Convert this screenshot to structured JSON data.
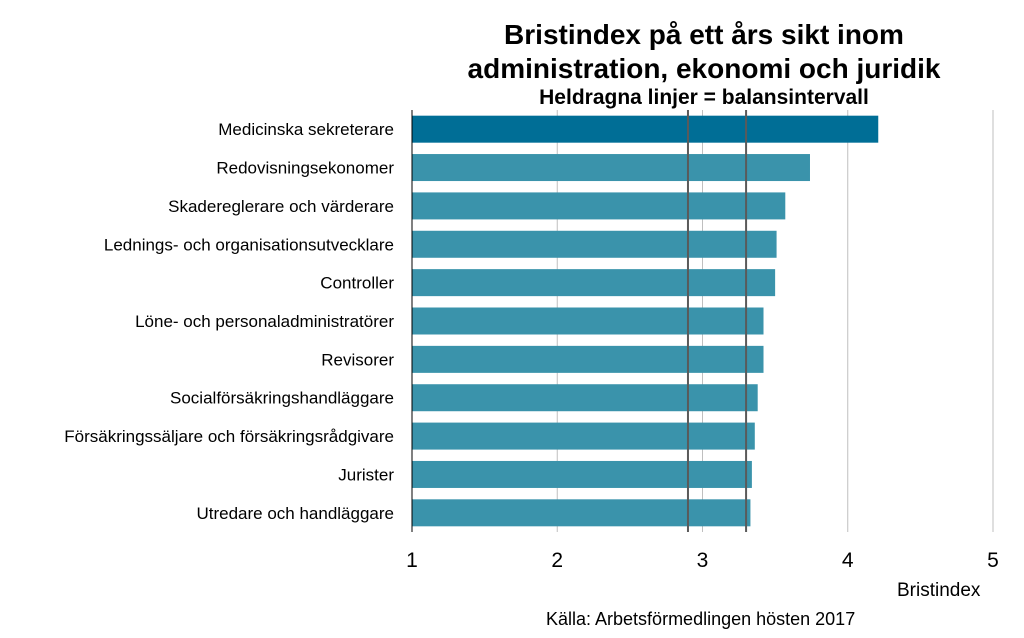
{
  "chart_data": {
    "type": "bar",
    "orientation": "horizontal",
    "title": "Bristindex på ett års sikt inom administration, ekonomi och juridik",
    "title_lines": [
      "Bristindex på ett års sikt inom",
      "administration, ekonomi och juridik"
    ],
    "subtitle": "Heldragna linjer = balansintervall",
    "xlabel": "Bristindex",
    "ylabel": "",
    "xlim": [
      1,
      5
    ],
    "xticks": [
      "1",
      "2",
      "3",
      "4",
      "5"
    ],
    "grid": "vertical",
    "balance_interval": [
      2.9,
      3.3
    ],
    "categories": [
      "Medicinska sekreterare",
      "Redovisningsekonomer",
      "Skadereglerare och värderare",
      "Lednings- och organisationsutvecklare",
      "Controller",
      "Löne- och personaladministratörer",
      "Revisorer",
      "Socialförsäkringshandläggare",
      "Försäkringssäljare och försäkringsrådgivare",
      "Jurister",
      "Utredare och handläggare"
    ],
    "values": [
      4.21,
      3.74,
      3.57,
      3.51,
      3.5,
      3.42,
      3.42,
      3.38,
      3.36,
      3.34,
      3.33
    ],
    "colors": {
      "highlight": "#006e96",
      "bar": "#3a93ab",
      "gridline": "#bfbfbf",
      "interval_line": "#5a5a5a",
      "axis": "#000000"
    }
  },
  "source": "Källa: Arbetsförmedlingen hösten 2017"
}
